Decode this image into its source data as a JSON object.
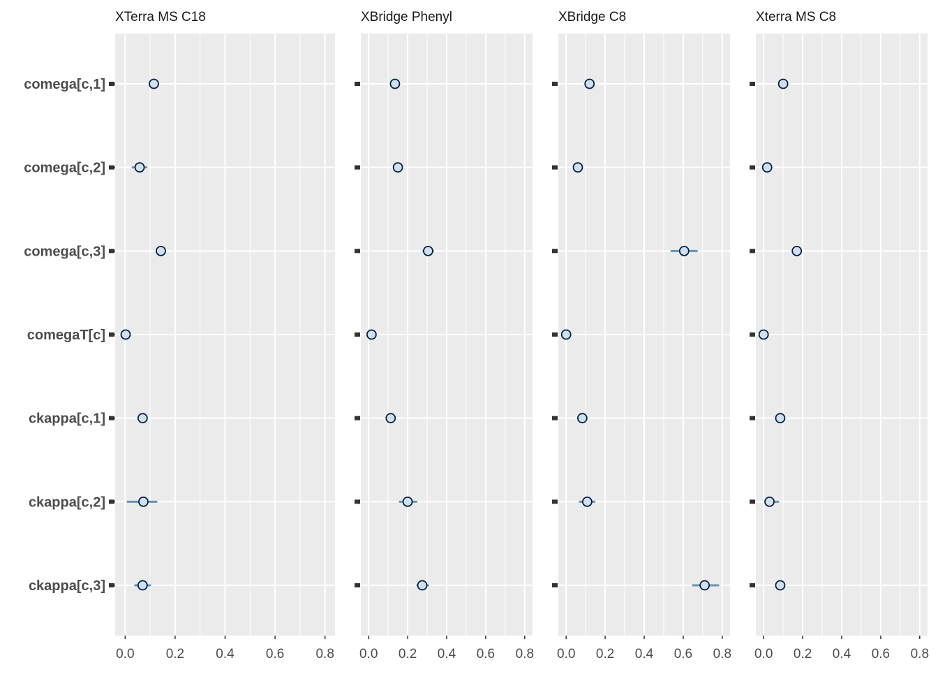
{
  "chart_data": {
    "type": "scatter",
    "parameters": [
      "comega[c,1]",
      "comega[c,2]",
      "comega[c,3]",
      "comegaT[c]",
      "ckappa[c,1]",
      "ckappa[c,2]",
      "ckappa[c,3]"
    ],
    "xlim": [
      -0.04,
      0.84
    ],
    "x_ticks": [
      0.0,
      0.2,
      0.4,
      0.6,
      0.8
    ],
    "x_tick_labels": [
      "0.0",
      "0.2",
      "0.4",
      "0.6",
      "0.8"
    ],
    "grid": true,
    "colors": {
      "panel_background": "#ebebeb",
      "grid_line": "#ffffff",
      "point_fill": "#d1e1ec",
      "point_stroke": "#011f4b",
      "interval_line": "#6497b1",
      "reference_mark": "#333333",
      "strip_text": "#1a1a1a",
      "axis_text": "#4d4d4d"
    },
    "facets": [
      {
        "title": "XTerra MS C18",
        "points": [
          {
            "estimate": 0.115,
            "low": 0.105,
            "high": 0.125
          },
          {
            "estimate": 0.058,
            "low": 0.03,
            "high": 0.085
          },
          {
            "estimate": 0.143,
            "low": 0.135,
            "high": 0.15
          },
          {
            "estimate": 0.002,
            "low": 0.0,
            "high": 0.004
          },
          {
            "estimate": 0.07,
            "low": 0.06,
            "high": 0.08
          },
          {
            "estimate": 0.073,
            "low": 0.01,
            "high": 0.125
          },
          {
            "estimate": 0.07,
            "low": 0.04,
            "high": 0.1
          }
        ]
      },
      {
        "title": "XBridge Phenyl",
        "points": [
          {
            "estimate": 0.135,
            "low": 0.128,
            "high": 0.142
          },
          {
            "estimate": 0.15,
            "low": 0.142,
            "high": 0.158
          },
          {
            "estimate": 0.305,
            "low": 0.28,
            "high": 0.33
          },
          {
            "estimate": 0.015,
            "low": 0.008,
            "high": 0.022
          },
          {
            "estimate": 0.113,
            "low": 0.105,
            "high": 0.12
          },
          {
            "estimate": 0.2,
            "low": 0.16,
            "high": 0.245
          },
          {
            "estimate": 0.275,
            "low": 0.25,
            "high": 0.305
          }
        ]
      },
      {
        "title": "XBridge C8",
        "points": [
          {
            "estimate": 0.12,
            "low": 0.11,
            "high": 0.13
          },
          {
            "estimate": 0.06,
            "low": 0.05,
            "high": 0.07
          },
          {
            "estimate": 0.605,
            "low": 0.54,
            "high": 0.67
          },
          {
            "estimate": 0.0,
            "low": -0.005,
            "high": 0.005
          },
          {
            "estimate": 0.083,
            "low": 0.075,
            "high": 0.09
          },
          {
            "estimate": 0.108,
            "low": 0.07,
            "high": 0.145
          },
          {
            "estimate": 0.71,
            "low": 0.65,
            "high": 0.78
          }
        ]
      },
      {
        "title": "Xterra MS C8",
        "points": [
          {
            "estimate": 0.1,
            "low": 0.092,
            "high": 0.108
          },
          {
            "estimate": 0.018,
            "low": 0.01,
            "high": 0.025
          },
          {
            "estimate": 0.17,
            "low": 0.16,
            "high": 0.18
          },
          {
            "estimate": 0.0,
            "low": -0.005,
            "high": 0.005
          },
          {
            "estimate": 0.085,
            "low": 0.078,
            "high": 0.092
          },
          {
            "estimate": 0.03,
            "low": 0.01,
            "high": 0.075
          },
          {
            "estimate": 0.085,
            "low": 0.078,
            "high": 0.092
          }
        ]
      }
    ]
  }
}
